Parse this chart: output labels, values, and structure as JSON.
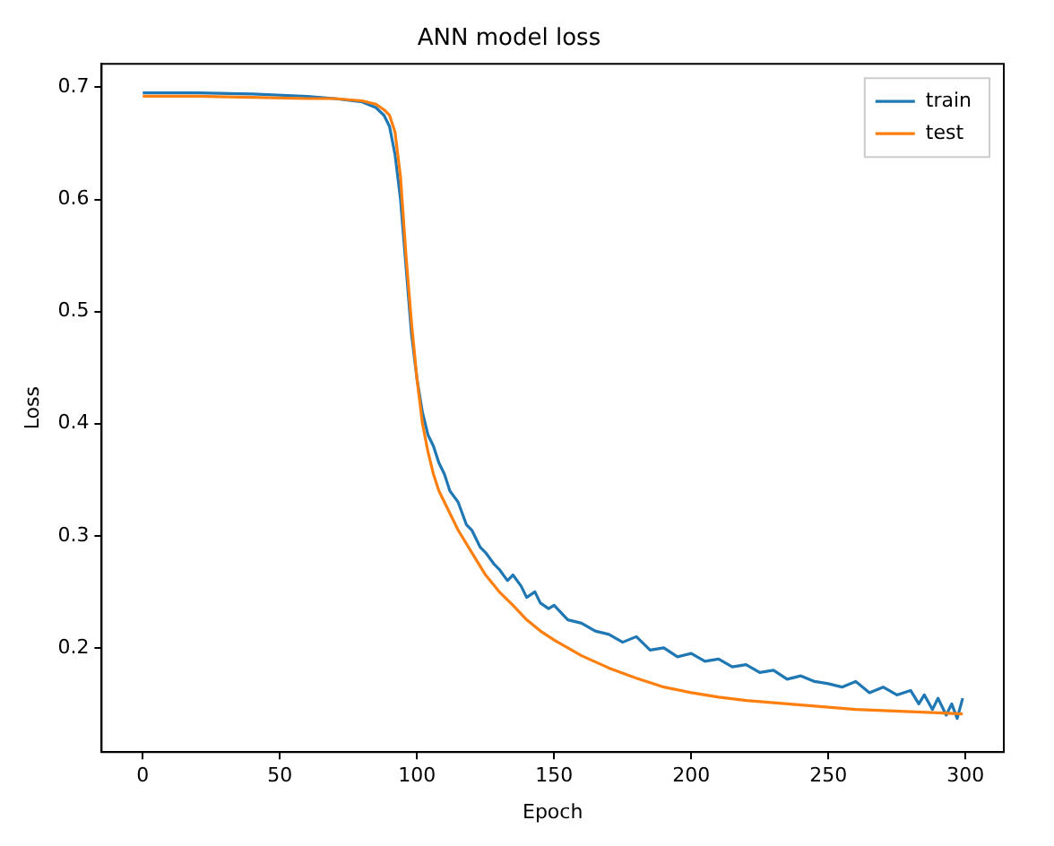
{
  "chart_data": {
    "type": "line",
    "title": "ANN model loss",
    "xlabel": "Epoch",
    "ylabel": "Loss",
    "xlim": [
      -15,
      314
    ],
    "ylim": [
      0.107,
      0.721
    ],
    "xticks": [
      0,
      50,
      100,
      150,
      200,
      250,
      300
    ],
    "yticks": [
      0.2,
      0.3,
      0.4,
      0.5,
      0.6,
      0.7
    ],
    "grid": false,
    "legend": "top right",
    "marker": "none",
    "line_style": "solid",
    "series": [
      {
        "name": "train",
        "color": "#1f77b4",
        "x": [
          0,
          20,
          40,
          60,
          70,
          80,
          85,
          88,
          90,
          92,
          94,
          96,
          98,
          100,
          102,
          104,
          106,
          108,
          110,
          112,
          115,
          118,
          120,
          123,
          125,
          128,
          130,
          133,
          135,
          138,
          140,
          143,
          145,
          148,
          150,
          155,
          160,
          165,
          170,
          175,
          180,
          185,
          190,
          195,
          200,
          205,
          210,
          215,
          220,
          225,
          230,
          235,
          240,
          245,
          250,
          255,
          260,
          265,
          270,
          275,
          280,
          283,
          285,
          288,
          290,
          293,
          295,
          297,
          299
        ],
        "values": [
          0.695,
          0.695,
          0.694,
          0.692,
          0.69,
          0.687,
          0.682,
          0.675,
          0.665,
          0.64,
          0.6,
          0.54,
          0.48,
          0.44,
          0.41,
          0.39,
          0.38,
          0.365,
          0.355,
          0.34,
          0.33,
          0.31,
          0.305,
          0.29,
          0.285,
          0.275,
          0.27,
          0.26,
          0.265,
          0.255,
          0.245,
          0.25,
          0.24,
          0.235,
          0.238,
          0.225,
          0.222,
          0.215,
          0.212,
          0.205,
          0.21,
          0.198,
          0.2,
          0.192,
          0.195,
          0.188,
          0.19,
          0.183,
          0.185,
          0.178,
          0.18,
          0.172,
          0.175,
          0.17,
          0.168,
          0.165,
          0.17,
          0.16,
          0.165,
          0.158,
          0.162,
          0.15,
          0.158,
          0.145,
          0.155,
          0.14,
          0.15,
          0.137,
          0.155
        ]
      },
      {
        "name": "test",
        "color": "#ff7f0e",
        "x": [
          0,
          20,
          40,
          60,
          70,
          80,
          85,
          88,
          90,
          92,
          94,
          96,
          98,
          100,
          102,
          104,
          106,
          108,
          110,
          115,
          120,
          125,
          130,
          135,
          140,
          145,
          150,
          160,
          170,
          180,
          190,
          200,
          210,
          220,
          230,
          240,
          250,
          260,
          270,
          280,
          290,
          299
        ],
        "values": [
          0.692,
          0.692,
          0.691,
          0.69,
          0.69,
          0.688,
          0.685,
          0.68,
          0.675,
          0.66,
          0.62,
          0.55,
          0.49,
          0.44,
          0.4,
          0.375,
          0.355,
          0.34,
          0.33,
          0.305,
          0.285,
          0.265,
          0.25,
          0.238,
          0.225,
          0.215,
          0.207,
          0.193,
          0.182,
          0.173,
          0.165,
          0.16,
          0.156,
          0.153,
          0.151,
          0.149,
          0.147,
          0.145,
          0.144,
          0.143,
          0.142,
          0.141
        ]
      }
    ]
  }
}
